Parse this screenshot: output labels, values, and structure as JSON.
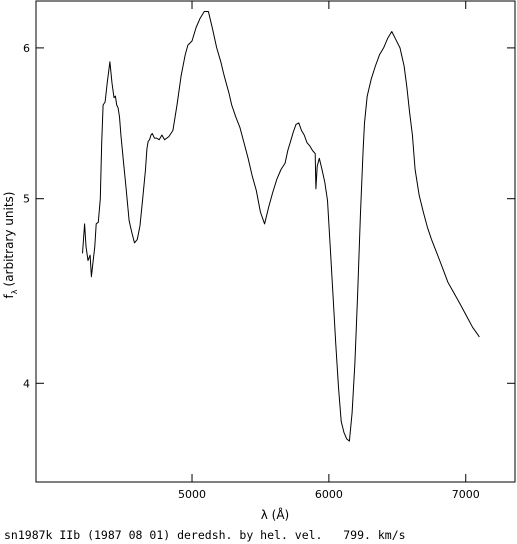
{
  "chart_data": {
    "type": "line",
    "xlabel": "λ (Å)",
    "ylabel": "f",
    "ylabel_sub": "λ",
    "ylabel_rest": "(arbitrary units)",
    "caption": "sn1987k IIb (1987 08 01) deredsh. by hel. vel.   799. km/s",
    "y_scale": "log",
    "xlim": [
      3860,
      7360
    ],
    "ylim": [
      3.55,
      6.35
    ],
    "x_ticks": [
      5000,
      6000,
      7000
    ],
    "y_ticks": [
      4,
      5,
      6
    ],
    "grid": false,
    "series": [
      {
        "x": [
          4200,
          4215,
          4225,
          4240,
          4255,
          4265,
          4275,
          4290,
          4300,
          4315,
          4330,
          4340,
          4350,
          4365,
          4380,
          4400,
          4415,
          4430,
          4440,
          4450,
          4460,
          4470,
          4480,
          4500,
          4520,
          4540,
          4560,
          4580,
          4600,
          4620,
          4640,
          4660,
          4670,
          4680,
          4690,
          4700,
          4710,
          4725,
          4740,
          4760,
          4780,
          4800,
          4830,
          4860,
          4890,
          4920,
          4950,
          4970,
          5000,
          5030,
          5060,
          5090,
          5120,
          5150,
          5180,
          5210,
          5230,
          5250,
          5270,
          5290,
          5320,
          5350,
          5380,
          5410,
          5440,
          5470,
          5500,
          5530,
          5560,
          5590,
          5620,
          5650,
          5680,
          5700,
          5720,
          5740,
          5760,
          5780,
          5800,
          5820,
          5840,
          5860,
          5880,
          5900,
          5905,
          5915,
          5930,
          5950,
          5970,
          5990,
          6010,
          6030,
          6050,
          6070,
          6090,
          6110,
          6130,
          6150,
          6170,
          6190,
          6210,
          6230,
          6250,
          6260,
          6280,
          6310,
          6340,
          6370,
          6400,
          6430,
          6460,
          6490,
          6520,
          6550,
          6570,
          6590,
          6610,
          6630,
          6660,
          6690,
          6720,
          6750,
          6780,
          6810,
          6840,
          6870,
          6900,
          6930,
          6960,
          6990,
          7020,
          7050,
          7080,
          7100
        ],
        "y": [
          4.68,
          4.85,
          4.72,
          4.64,
          4.67,
          4.55,
          4.62,
          4.72,
          4.85,
          4.86,
          5.0,
          5.35,
          5.6,
          5.62,
          5.75,
          5.9,
          5.75,
          5.65,
          5.66,
          5.6,
          5.58,
          5.52,
          5.4,
          5.22,
          5.05,
          4.87,
          4.8,
          4.74,
          4.76,
          4.84,
          5.0,
          5.18,
          5.31,
          5.36,
          5.37,
          5.4,
          5.41,
          5.38,
          5.38,
          5.37,
          5.4,
          5.37,
          5.39,
          5.43,
          5.6,
          5.8,
          5.95,
          6.02,
          6.05,
          6.15,
          6.22,
          6.27,
          6.27,
          6.14,
          6.0,
          5.9,
          5.82,
          5.75,
          5.68,
          5.6,
          5.52,
          5.45,
          5.35,
          5.25,
          5.14,
          5.05,
          4.92,
          4.85,
          4.95,
          5.04,
          5.12,
          5.18,
          5.22,
          5.3,
          5.36,
          5.42,
          5.47,
          5.48,
          5.43,
          5.4,
          5.35,
          5.33,
          5.3,
          5.28,
          5.06,
          5.2,
          5.25,
          5.18,
          5.1,
          4.99,
          4.72,
          4.45,
          4.2,
          3.98,
          3.82,
          3.77,
          3.74,
          3.73,
          3.86,
          4.1,
          4.45,
          4.9,
          5.3,
          5.48,
          5.66,
          5.78,
          5.87,
          5.95,
          6.0,
          6.07,
          6.12,
          6.06,
          6.0,
          5.87,
          5.72,
          5.55,
          5.4,
          5.18,
          5.02,
          4.92,
          4.83,
          4.76,
          4.7,
          4.64,
          4.58,
          4.52,
          4.48,
          4.44,
          4.4,
          4.36,
          4.32,
          4.28,
          4.25,
          4.23
        ]
      }
    ]
  }
}
